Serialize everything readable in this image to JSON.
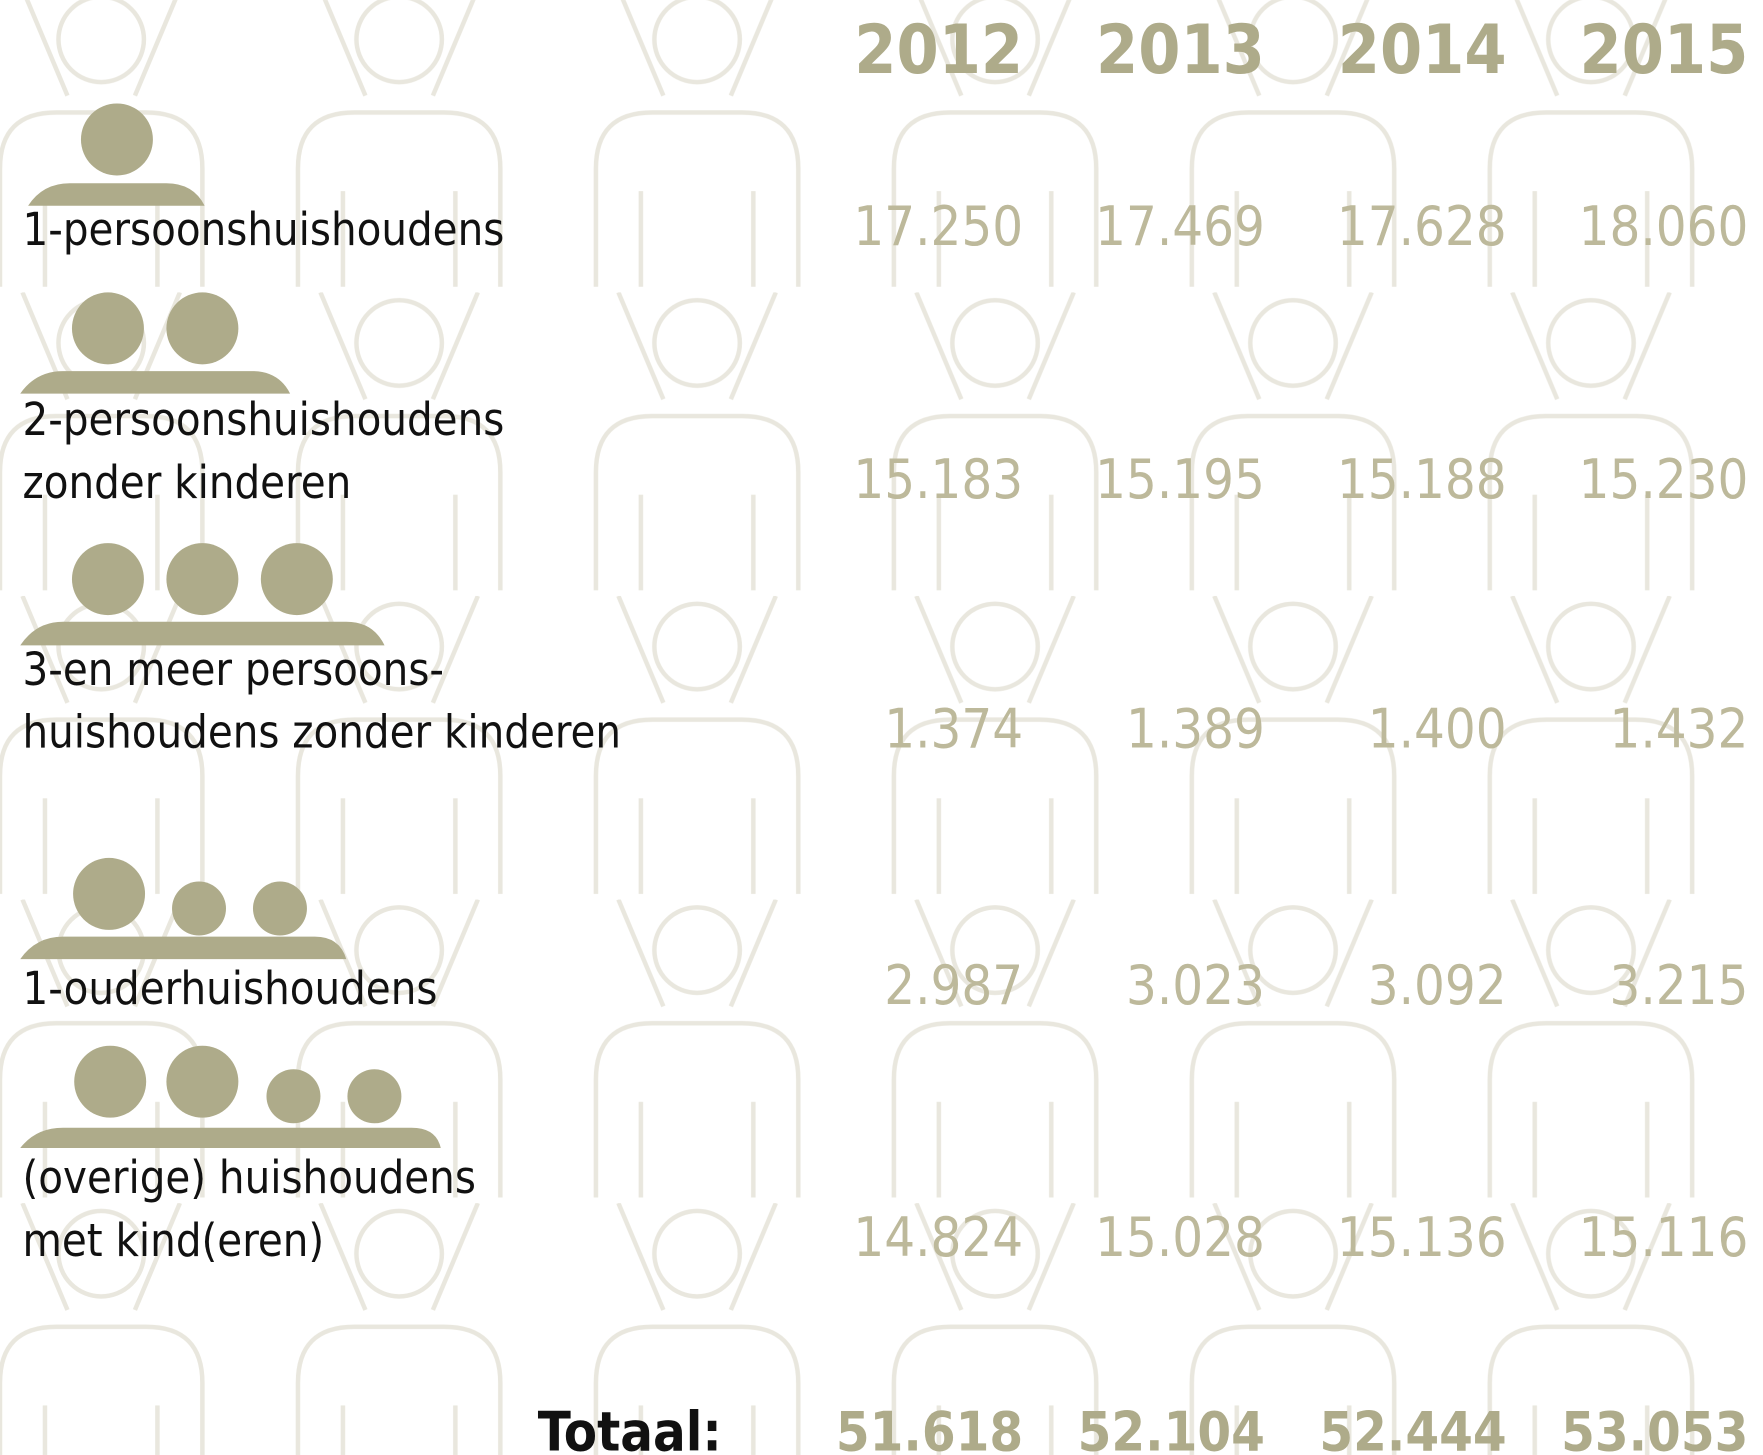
{
  "header": {
    "years": [
      "2012",
      "2013",
      "2014",
      "2015"
    ]
  },
  "table": {
    "rows": [
      {
        "label": [
          "1-persoonshuishoudens"
        ],
        "values": [
          "17.250",
          "17.469",
          "17.628",
          "18.060"
        ]
      },
      {
        "label": [
          "2-persoonshuishoudens",
          "zonder kinderen"
        ],
        "values": [
          "15.183",
          "15.195",
          "15.188",
          "15.230"
        ]
      },
      {
        "label": [
          "3-en meer persoons-",
          "huishoudens zonder kinderen"
        ],
        "values": [
          "1.374",
          "1.389",
          "1.400",
          "1.432"
        ]
      },
      {
        "label": [
          "1-ouderhuishoudens"
        ],
        "values": [
          "2.987",
          "3.023",
          "3.092",
          "3.215"
        ]
      },
      {
        "label": [
          "(overige) huishoudens",
          "met kind(eren)"
        ],
        "values": [
          "14.824",
          "15.028",
          "15.136",
          "15.116"
        ]
      }
    ],
    "total": {
      "label": "Totaal:",
      "values": [
        "51.618",
        "52.104",
        "52.444",
        "53.053"
      ]
    }
  }
}
